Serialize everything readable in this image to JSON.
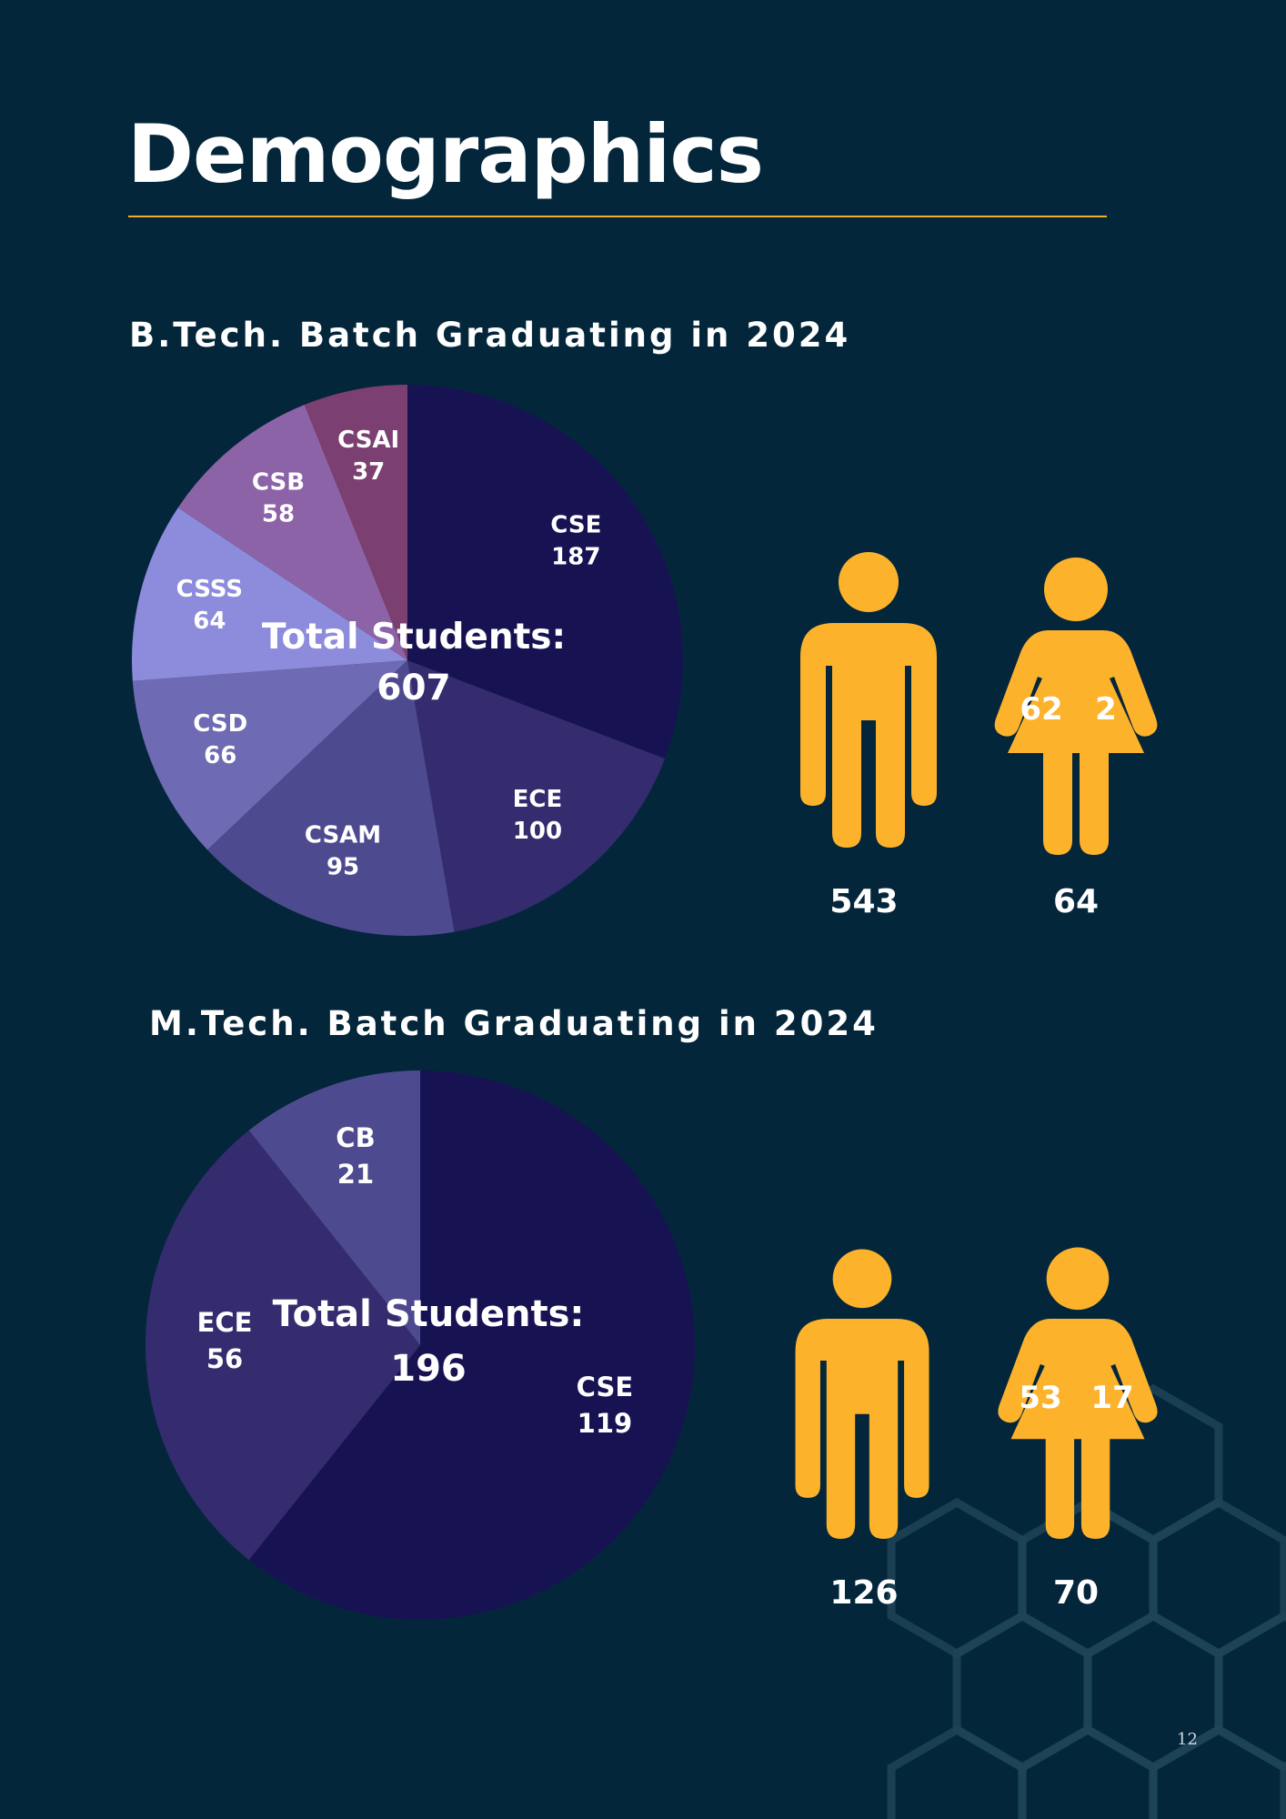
{
  "page": {
    "title": "Demographics",
    "page_number": "12",
    "colors": {
      "background": "#04263b",
      "accent": "#f0ac2a",
      "figure": "#fdb22b",
      "hexagon": "#1f4457"
    }
  },
  "btech": {
    "heading": "B.Tech. Batch Graduating in 2024",
    "total_label": "Total Students:",
    "total_value": "607",
    "gender": {
      "male": "543",
      "female": "64",
      "female_a": "62",
      "female_b": "2"
    }
  },
  "mtech": {
    "heading": "M.Tech. Batch Graduating in 2024",
    "total_label": "Total Students:",
    "total_value": "196",
    "gender": {
      "male": "126",
      "female": "70",
      "female_a": "53",
      "female_b": "17"
    }
  },
  "chart_data": [
    {
      "type": "pie",
      "categories": [
        "CSE",
        "ECE",
        "CSAM",
        "CSD",
        "CSSS",
        "CSB",
        "CSAI"
      ],
      "values": [
        187,
        100,
        95,
        66,
        64,
        58,
        37
      ],
      "labels": [
        "187",
        "100",
        "95",
        "66",
        "64",
        "58",
        "37"
      ],
      "colors": [
        "#171352",
        "#342c6f",
        "#4e4a8f",
        "#6e6bb4",
        "#8d8bdb",
        "#8c63a6",
        "#7c3f71"
      ]
    },
    {
      "type": "pie",
      "categories": [
        "CSE",
        "ECE",
        "CB"
      ],
      "values": [
        119,
        56,
        21
      ],
      "labels": [
        "119",
        "56",
        "21"
      ],
      "colors": [
        "#171352",
        "#342c6f",
        "#4e4a8f"
      ]
    }
  ]
}
